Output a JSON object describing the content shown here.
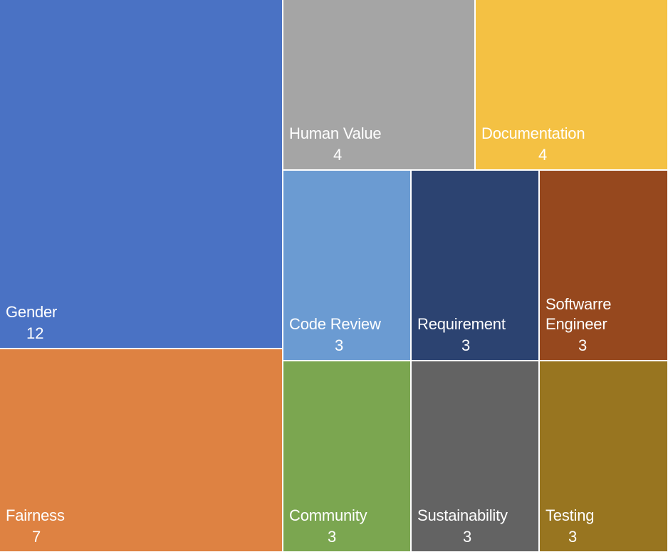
{
  "chart_data": {
    "type": "treemap",
    "title": "",
    "items": [
      {
        "label": "Gender",
        "value": 12,
        "color": "#4A72C4"
      },
      {
        "label": "Fairness",
        "value": 7,
        "color": "#DE8242"
      },
      {
        "label": "Human Value",
        "value": 4,
        "color": "#A5A5A5"
      },
      {
        "label": "Documentation",
        "value": 4,
        "color": "#F4C143"
      },
      {
        "label": "Code Review",
        "value": 3,
        "color": "#6B9BD2"
      },
      {
        "label": "Requirement",
        "value": 3,
        "color": "#2C4371"
      },
      {
        "label": "Softwarre Engineer",
        "value": 3,
        "color": "#96481E"
      },
      {
        "label": "Community",
        "value": 3,
        "color": "#7BA650"
      },
      {
        "label": "Sustainability",
        "value": 3,
        "color": "#636363"
      },
      {
        "label": "Testing",
        "value": 3,
        "color": "#987520"
      }
    ]
  }
}
